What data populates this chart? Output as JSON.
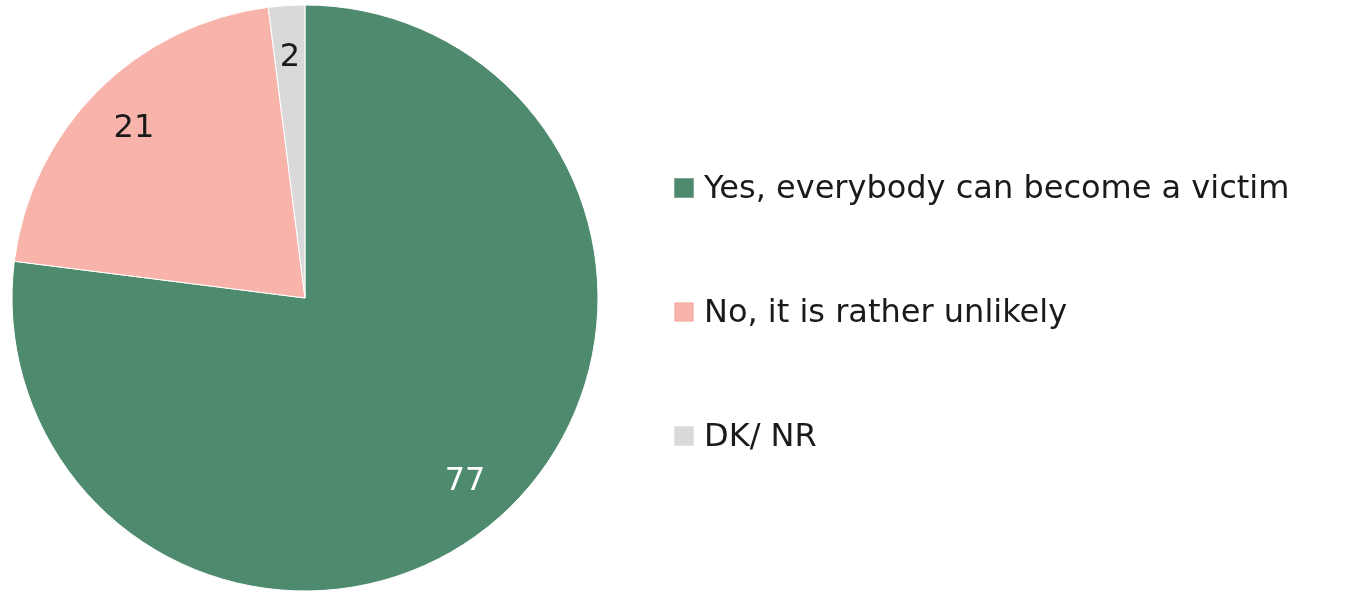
{
  "chart_data": {
    "type": "pie",
    "categories": [
      "Yes, everybody can become a victim",
      "No, it is rather unlikely",
      "DK/ NR"
    ],
    "values": [
      77,
      21,
      2
    ],
    "colors": [
      "#4e8a6e",
      "#f8b4aa",
      "#d9d9d9"
    ],
    "data_labels": true,
    "legend": "right"
  }
}
